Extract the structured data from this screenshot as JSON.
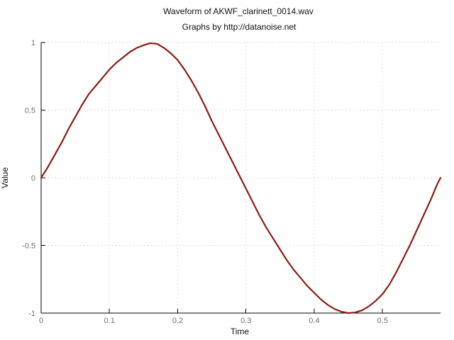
{
  "chart_data": {
    "type": "line",
    "title": "Waveform of AKWF_clarinett_0014.wav",
    "subtitle": "Graphs by http://datanoise.net",
    "xlabel": "Time",
    "ylabel": "Value",
    "xlim": [
      0,
      0.585
    ],
    "ylim": [
      -1,
      1
    ],
    "grid": true,
    "x_ticks": [
      {
        "value": 0,
        "label": "0"
      },
      {
        "value": 0.1,
        "label": "0.1"
      },
      {
        "value": 0.2,
        "label": "0.2"
      },
      {
        "value": 0.3,
        "label": "0.3"
      },
      {
        "value": 0.4,
        "label": "0.4"
      },
      {
        "value": 0.5,
        "label": "0.5"
      }
    ],
    "y_ticks": [
      {
        "value": 1,
        "label": "1"
      },
      {
        "value": 0.5,
        "label": "0.5"
      },
      {
        "value": 0,
        "label": "0"
      },
      {
        "value": -0.5,
        "label": "-0.5"
      },
      {
        "value": -1,
        "label": "-1"
      }
    ],
    "series": [
      {
        "color": "#8b1c13",
        "points": [
          [
            0,
            0
          ],
          [
            0.01,
            0.08
          ],
          [
            0.02,
            0.17
          ],
          [
            0.03,
            0.26
          ],
          [
            0.04,
            0.36
          ],
          [
            0.05,
            0.45
          ],
          [
            0.06,
            0.54
          ],
          [
            0.07,
            0.62
          ],
          [
            0.08,
            0.68
          ],
          [
            0.09,
            0.74
          ],
          [
            0.1,
            0.8
          ],
          [
            0.11,
            0.85
          ],
          [
            0.12,
            0.89
          ],
          [
            0.13,
            0.93
          ],
          [
            0.14,
            0.96
          ],
          [
            0.15,
            0.98
          ],
          [
            0.16,
            0.995
          ],
          [
            0.17,
            0.99
          ],
          [
            0.18,
            0.96
          ],
          [
            0.19,
            0.92
          ],
          [
            0.2,
            0.87
          ],
          [
            0.21,
            0.8
          ],
          [
            0.22,
            0.72
          ],
          [
            0.23,
            0.63
          ],
          [
            0.24,
            0.53
          ],
          [
            0.25,
            0.42
          ],
          [
            0.26,
            0.32
          ],
          [
            0.27,
            0.22
          ],
          [
            0.28,
            0.12
          ],
          [
            0.29,
            0.02
          ],
          [
            0.3,
            -0.08
          ],
          [
            0.31,
            -0.18
          ],
          [
            0.32,
            -0.28
          ],
          [
            0.33,
            -0.37
          ],
          [
            0.34,
            -0.45
          ],
          [
            0.35,
            -0.53
          ],
          [
            0.36,
            -0.61
          ],
          [
            0.37,
            -0.68
          ],
          [
            0.38,
            -0.74
          ],
          [
            0.39,
            -0.8
          ],
          [
            0.4,
            -0.85
          ],
          [
            0.41,
            -0.9
          ],
          [
            0.42,
            -0.94
          ],
          [
            0.43,
            -0.97
          ],
          [
            0.44,
            -0.99
          ],
          [
            0.45,
            -1.0
          ],
          [
            0.46,
            -0.995
          ],
          [
            0.47,
            -0.98
          ],
          [
            0.48,
            -0.95
          ],
          [
            0.49,
            -0.91
          ],
          [
            0.5,
            -0.86
          ],
          [
            0.51,
            -0.79
          ],
          [
            0.52,
            -0.7
          ],
          [
            0.53,
            -0.6
          ],
          [
            0.54,
            -0.5
          ],
          [
            0.55,
            -0.39
          ],
          [
            0.56,
            -0.28
          ],
          [
            0.57,
            -0.17
          ],
          [
            0.58,
            -0.05
          ],
          [
            0.585,
            0.0
          ]
        ]
      }
    ]
  }
}
